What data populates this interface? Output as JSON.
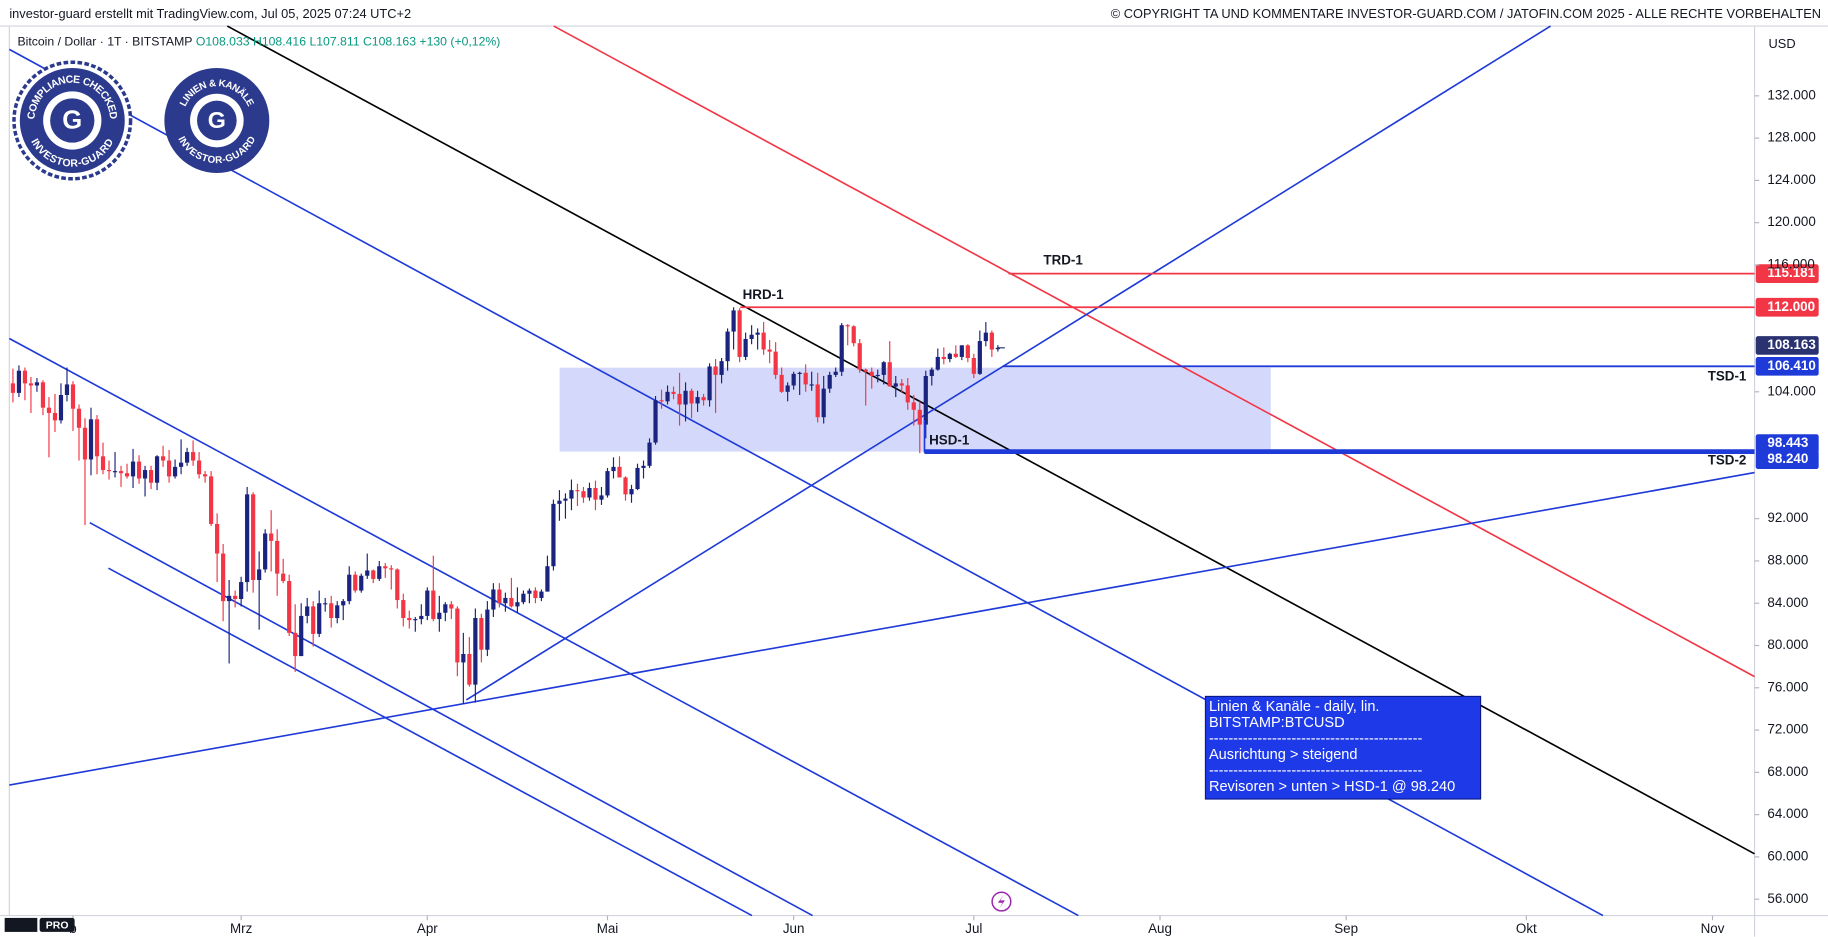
{
  "chart_data": {
    "type": "candlestick",
    "header_left": "investor-guard erstellt mit TradingView.com, Jul 05, 2025 07:24 UTC+2",
    "header_right": "© COPYRIGHT TA UND KOMMENTARE INVESTOR-GUARD.COM / JATOFIN.COM 2025 - ALLE RECHTE VORBEHALTEN",
    "symbol": "Bitcoin / Dollar · 1T · BITSTAMP",
    "ohlc_text": "O108.033 H108.416 L107.811 C108.163 +130 (+0,12%)",
    "currency": "USD",
    "badges": [
      {
        "top": "COMPLIANCE CHECKED",
        "bottom": "INVESTOR-GUARD",
        "letter": "G"
      },
      {
        "top": "LINIEN & KANÄLE",
        "bottom": "INVESTOR-GUARD",
        "letter": "G"
      }
    ],
    "logo": "PRO",
    "up_color": "#1a237e",
    "down_color": "#f23645",
    "ylim": [
      54.45,
      138.6
    ],
    "xlim": [
      -0.6,
      290
    ],
    "yticks": [
      {
        "value": 132,
        "label": "132.000"
      },
      {
        "value": 128,
        "label": "128.000"
      },
      {
        "value": 124,
        "label": "124.000"
      },
      {
        "value": 120,
        "label": "120.000"
      },
      {
        "value": 116,
        "label": "116.000"
      },
      {
        "value": 104,
        "label": "104.000"
      },
      {
        "value": 92,
        "label": "92.000"
      },
      {
        "value": 88,
        "label": "88.000"
      },
      {
        "value": 84,
        "label": "84.000"
      },
      {
        "value": 80,
        "label": "80.000"
      },
      {
        "value": 76,
        "label": "76.000"
      },
      {
        "value": 72,
        "label": "72.000"
      },
      {
        "value": 68,
        "label": "68.000"
      },
      {
        "value": 64,
        "label": "64.000"
      },
      {
        "value": 60,
        "label": "60.000"
      },
      {
        "value": 56,
        "label": "56.000"
      }
    ],
    "xticks": [
      {
        "value": 10,
        "label": "b"
      },
      {
        "value": 38,
        "label": "Mrz"
      },
      {
        "value": 69,
        "label": "Apr"
      },
      {
        "value": 99,
        "label": "Mai"
      },
      {
        "value": 130,
        "label": "Jun"
      },
      {
        "value": 160,
        "label": "Jul"
      },
      {
        "value": 191,
        "label": "Aug"
      },
      {
        "value": 222,
        "label": "Sep"
      },
      {
        "value": 252,
        "label": "Okt"
      },
      {
        "value": 283,
        "label": "Nov"
      }
    ],
    "levels": [
      {
        "name": "TRD-1",
        "value": 115.181,
        "label": "115.181",
        "color": "#f23645"
      },
      {
        "name": "HRD-1",
        "value": 112.0,
        "label": "112.000",
        "color": "#f23645"
      },
      {
        "name": "TSD-1",
        "value": 106.41,
        "label": "106.410",
        "color": "#1e3ad8"
      },
      {
        "name": "TSD-2",
        "value": 98.443,
        "label": "98.443",
        "color": "#1e3ad8"
      },
      {
        "name": "HSD-1",
        "value": 98.24,
        "label": "98.240",
        "color": "#1e3ad8"
      }
    ],
    "last_price": {
      "value": 108.163,
      "label": "108.163",
      "color": "#2a3270"
    },
    "info_box": [
      "Linien & Kanäle - daily, lin.",
      "BITSTAMP:BTCUSD",
      "--------------------------------------------",
      "Ausrichtung > steigend",
      "--------------------------------------------",
      "Revisoren > unten > HSD-1 @ 98.240"
    ],
    "candles": [
      [
        104.8,
        106.2,
        103.0,
        103.9
      ],
      [
        103.9,
        106.5,
        103.5,
        106.0
      ],
      [
        106.0,
        106.3,
        103.2,
        104.8
      ],
      [
        104.8,
        105.4,
        102.0,
        104.6
      ],
      [
        104.6,
        105.3,
        104.0,
        104.9
      ],
      [
        104.9,
        105.1,
        101.8,
        102.5
      ],
      [
        102.5,
        103.5,
        97.8,
        102.0
      ],
      [
        102.0,
        103.8,
        100.2,
        101.3
      ],
      [
        101.3,
        104.8,
        101.0,
        103.7
      ],
      [
        103.7,
        106.3,
        103.1,
        104.7
      ],
      [
        104.7,
        105.0,
        100.3,
        102.4
      ],
      [
        102.4,
        102.8,
        97.5,
        100.6
      ],
      [
        100.6,
        101.5,
        91.4,
        97.6
      ],
      [
        97.6,
        102.5,
        96.1,
        101.4
      ],
      [
        101.4,
        101.8,
        96.2,
        97.9
      ],
      [
        97.9,
        99.2,
        96.2,
        96.6
      ],
      [
        96.6,
        97.5,
        95.7,
        96.5
      ],
      [
        96.5,
        98.3,
        95.9,
        96.5
      ],
      [
        96.5,
        97.0,
        95.0,
        96.3
      ],
      [
        96.3,
        97.2,
        95.8,
        96.0
      ],
      [
        96.0,
        98.6,
        94.9,
        97.4
      ],
      [
        97.4,
        98.0,
        95.3,
        95.8
      ],
      [
        95.8,
        97.0,
        94.1,
        96.6
      ],
      [
        96.6,
        97.0,
        94.8,
        95.4
      ],
      [
        95.4,
        98.0,
        94.7,
        97.9
      ],
      [
        97.9,
        98.9,
        96.9,
        97.5
      ],
      [
        97.5,
        98.5,
        95.4,
        96.0
      ],
      [
        96.0,
        97.6,
        95.8,
        96.9
      ],
      [
        96.9,
        99.5,
        96.2,
        97.3
      ],
      [
        97.3,
        98.7,
        97.0,
        98.3
      ],
      [
        98.3,
        99.4,
        97.0,
        97.5
      ],
      [
        97.5,
        98.3,
        95.8,
        96.2
      ],
      [
        96.2,
        96.5,
        95.4,
        96.0
      ],
      [
        96.0,
        96.5,
        91.3,
        91.5
      ],
      [
        91.5,
        92.5,
        86.0,
        88.7
      ],
      [
        88.7,
        89.6,
        82.3,
        84.2
      ],
      [
        84.2,
        86.2,
        78.3,
        84.7
      ],
      [
        84.7,
        85.2,
        83.6,
        84.4
      ],
      [
        84.4,
        86.5,
        83.7,
        86.0
      ],
      [
        86.0,
        95.0,
        85.1,
        94.3
      ],
      [
        94.3,
        94.5,
        85.0,
        86.2
      ],
      [
        86.2,
        88.9,
        81.5,
        87.2
      ],
      [
        87.2,
        91.0,
        86.9,
        90.6
      ],
      [
        90.6,
        92.8,
        87.0,
        89.9
      ],
      [
        89.9,
        91.0,
        84.7,
        86.8
      ],
      [
        86.8,
        88.2,
        85.9,
        86.1
      ],
      [
        86.1,
        86.7,
        80.9,
        81.2
      ],
      [
        81.2,
        83.9,
        77.5,
        79.0
      ],
      [
        79.0,
        84.0,
        79.0,
        82.8
      ],
      [
        82.8,
        84.5,
        82.1,
        83.7
      ],
      [
        83.7,
        84.2,
        79.9,
        81.1
      ],
      [
        81.1,
        85.2,
        80.8,
        84.0
      ],
      [
        84.0,
        84.5,
        83.2,
        84.0
      ],
      [
        84.0,
        84.7,
        81.7,
        82.6
      ],
      [
        82.6,
        84.2,
        82.1,
        83.8
      ],
      [
        83.8,
        84.4,
        82.4,
        84.2
      ],
      [
        84.2,
        87.5,
        83.9,
        86.7
      ],
      [
        86.7,
        87.0,
        85.0,
        85.2
      ],
      [
        85.2,
        86.8,
        85.0,
        86.6
      ],
      [
        86.6,
        88.7,
        86.3,
        87.1
      ],
      [
        87.1,
        87.2,
        85.9,
        86.3
      ],
      [
        86.3,
        88.0,
        86.1,
        87.5
      ],
      [
        87.5,
        87.8,
        86.4,
        87.3
      ],
      [
        87.3,
        87.6,
        85.3,
        87.2
      ],
      [
        87.2,
        87.3,
        83.5,
        84.3
      ],
      [
        84.3,
        84.9,
        81.8,
        82.6
      ],
      [
        82.6,
        83.3,
        81.6,
        82.4
      ],
      [
        82.4,
        82.7,
        81.3,
        82.5
      ],
      [
        82.5,
        83.9,
        82.0,
        82.8
      ],
      [
        82.8,
        85.5,
        82.4,
        85.2
      ],
      [
        85.2,
        88.5,
        82.3,
        82.5
      ],
      [
        82.5,
        84.7,
        81.3,
        83.1
      ],
      [
        83.1,
        84.1,
        82.3,
        83.9
      ],
      [
        83.9,
        84.2,
        82.5,
        83.5
      ],
      [
        83.5,
        83.7,
        77.1,
        78.4
      ],
      [
        78.4,
        81.2,
        74.5,
        79.2
      ],
      [
        79.2,
        80.8,
        76.1,
        76.3
      ],
      [
        76.3,
        83.5,
        74.6,
        82.6
      ],
      [
        82.6,
        83.0,
        78.4,
        79.6
      ],
      [
        79.6,
        84.2,
        79.0,
        83.4
      ],
      [
        83.4,
        85.9,
        82.7,
        85.3
      ],
      [
        85.3,
        85.9,
        83.6,
        84.0
      ],
      [
        84.0,
        85.0,
        83.2,
        84.5
      ],
      [
        84.5,
        86.4,
        83.6,
        83.7
      ],
      [
        83.7,
        85.5,
        83.1,
        84.1
      ],
      [
        84.1,
        85.2,
        83.9,
        84.9
      ],
      [
        84.9,
        85.4,
        84.0,
        85.2
      ],
      [
        85.2,
        85.5,
        84.0,
        84.5
      ],
      [
        84.5,
        85.3,
        84.2,
        85.1
      ],
      [
        85.1,
        88.5,
        85.1,
        87.5
      ],
      [
        87.5,
        93.8,
        87.1,
        93.4
      ],
      [
        93.4,
        94.7,
        91.8,
        93.7
      ],
      [
        93.7,
        94.4,
        92.0,
        93.9
      ],
      [
        93.9,
        95.7,
        92.8,
        94.7
      ],
      [
        94.7,
        95.3,
        93.2,
        94.6
      ],
      [
        94.6,
        95.0,
        93.5,
        94.0
      ],
      [
        94.0,
        95.4,
        93.7,
        94.9
      ],
      [
        94.9,
        95.6,
        92.8,
        93.8
      ],
      [
        93.8,
        95.0,
        93.3,
        94.2
      ],
      [
        94.2,
        96.8,
        94.0,
        96.5
      ],
      [
        96.5,
        97.8,
        95.8,
        96.9
      ],
      [
        96.9,
        97.9,
        95.9,
        95.9
      ],
      [
        95.9,
        96.0,
        93.7,
        94.3
      ],
      [
        94.3,
        95.2,
        93.5,
        94.8
      ],
      [
        94.8,
        97.2,
        94.7,
        96.8
      ],
      [
        96.8,
        97.5,
        95.8,
        97.0
      ],
      [
        97.0,
        99.6,
        96.8,
        99.2
      ],
      [
        99.2,
        103.6,
        99.0,
        103.2
      ],
      [
        103.2,
        104.2,
        102.4,
        103.1
      ],
      [
        103.1,
        104.6,
        102.8,
        104.0
      ],
      [
        104.0,
        104.5,
        103.3,
        103.8
      ],
      [
        103.8,
        105.8,
        100.8,
        102.8
      ],
      [
        102.8,
        104.9,
        101.2,
        104.1
      ],
      [
        104.1,
        104.3,
        101.5,
        102.9
      ],
      [
        102.9,
        104.1,
        102.1,
        103.5
      ],
      [
        103.5,
        103.8,
        102.7,
        103.2
      ],
      [
        103.2,
        106.7,
        102.6,
        106.4
      ],
      [
        106.4,
        107.1,
        102.0,
        105.6
      ],
      [
        105.6,
        107.2,
        104.8,
        106.9
      ],
      [
        106.9,
        110.0,
        106.0,
        109.7
      ],
      [
        109.7,
        112.0,
        108.0,
        111.7
      ],
      [
        111.7,
        111.9,
        106.8,
        107.3
      ],
      [
        107.3,
        109.6,
        107.0,
        109.0
      ],
      [
        109.0,
        110.3,
        108.5,
        109.4
      ],
      [
        109.4,
        110.0,
        108.0,
        109.6
      ],
      [
        109.6,
        110.6,
        107.5,
        108.0
      ],
      [
        108.0,
        108.9,
        106.7,
        107.8
      ],
      [
        107.8,
        108.7,
        105.2,
        105.6
      ],
      [
        105.6,
        106.3,
        103.9,
        104.0
      ],
      [
        104.0,
        104.9,
        103.1,
        104.6
      ],
      [
        104.6,
        105.9,
        104.2,
        105.7
      ],
      [
        105.7,
        105.9,
        103.7,
        105.8
      ],
      [
        105.8,
        106.6,
        104.0,
        104.7
      ],
      [
        104.7,
        105.9,
        104.1,
        104.7
      ],
      [
        104.7,
        105.8,
        101.1,
        101.6
      ],
      [
        101.6,
        105.5,
        101.0,
        104.3
      ],
      [
        104.3,
        105.9,
        103.9,
        105.6
      ],
      [
        105.6,
        106.3,
        105.4,
        105.9
      ],
      [
        105.9,
        110.5,
        105.5,
        110.3
      ],
      [
        110.3,
        110.4,
        108.4,
        110.2
      ],
      [
        110.2,
        110.3,
        108.3,
        108.6
      ],
      [
        108.6,
        109.0,
        105.8,
        106.1
      ],
      [
        106.1,
        106.2,
        102.7,
        105.9
      ],
      [
        105.9,
        106.3,
        104.3,
        105.5
      ],
      [
        105.5,
        106.1,
        104.9,
        105.6
      ],
      [
        105.6,
        106.9,
        104.7,
        106.8
      ],
      [
        106.8,
        108.8,
        104.5,
        104.5
      ],
      [
        104.5,
        105.5,
        103.5,
        104.8
      ],
      [
        104.8,
        105.2,
        103.9,
        104.6
      ],
      [
        104.6,
        105.3,
        102.3,
        103.0
      ],
      [
        103.0,
        103.7,
        100.8,
        102.3
      ],
      [
        102.3,
        103.1,
        98.2,
        100.9
      ],
      [
        100.9,
        106.0,
        99.6,
        105.5
      ],
      [
        105.5,
        106.3,
        104.6,
        106.1
      ],
      [
        106.1,
        108.1,
        106.0,
        107.3
      ],
      [
        107.3,
        108.2,
        106.6,
        107.1
      ],
      [
        107.1,
        107.7,
        106.8,
        107.6
      ],
      [
        107.6,
        108.4,
        107.2,
        107.3
      ],
      [
        107.3,
        108.4,
        107.0,
        108.4
      ],
      [
        108.4,
        108.5,
        106.8,
        107.2
      ],
      [
        107.2,
        107.6,
        105.3,
        105.7
      ],
      [
        105.7,
        109.8,
        105.6,
        108.8
      ],
      [
        108.8,
        110.6,
        108.3,
        109.6
      ],
      [
        109.6,
        109.8,
        107.3,
        108.0
      ],
      [
        108.033,
        108.416,
        107.811,
        108.163
      ]
    ]
  }
}
